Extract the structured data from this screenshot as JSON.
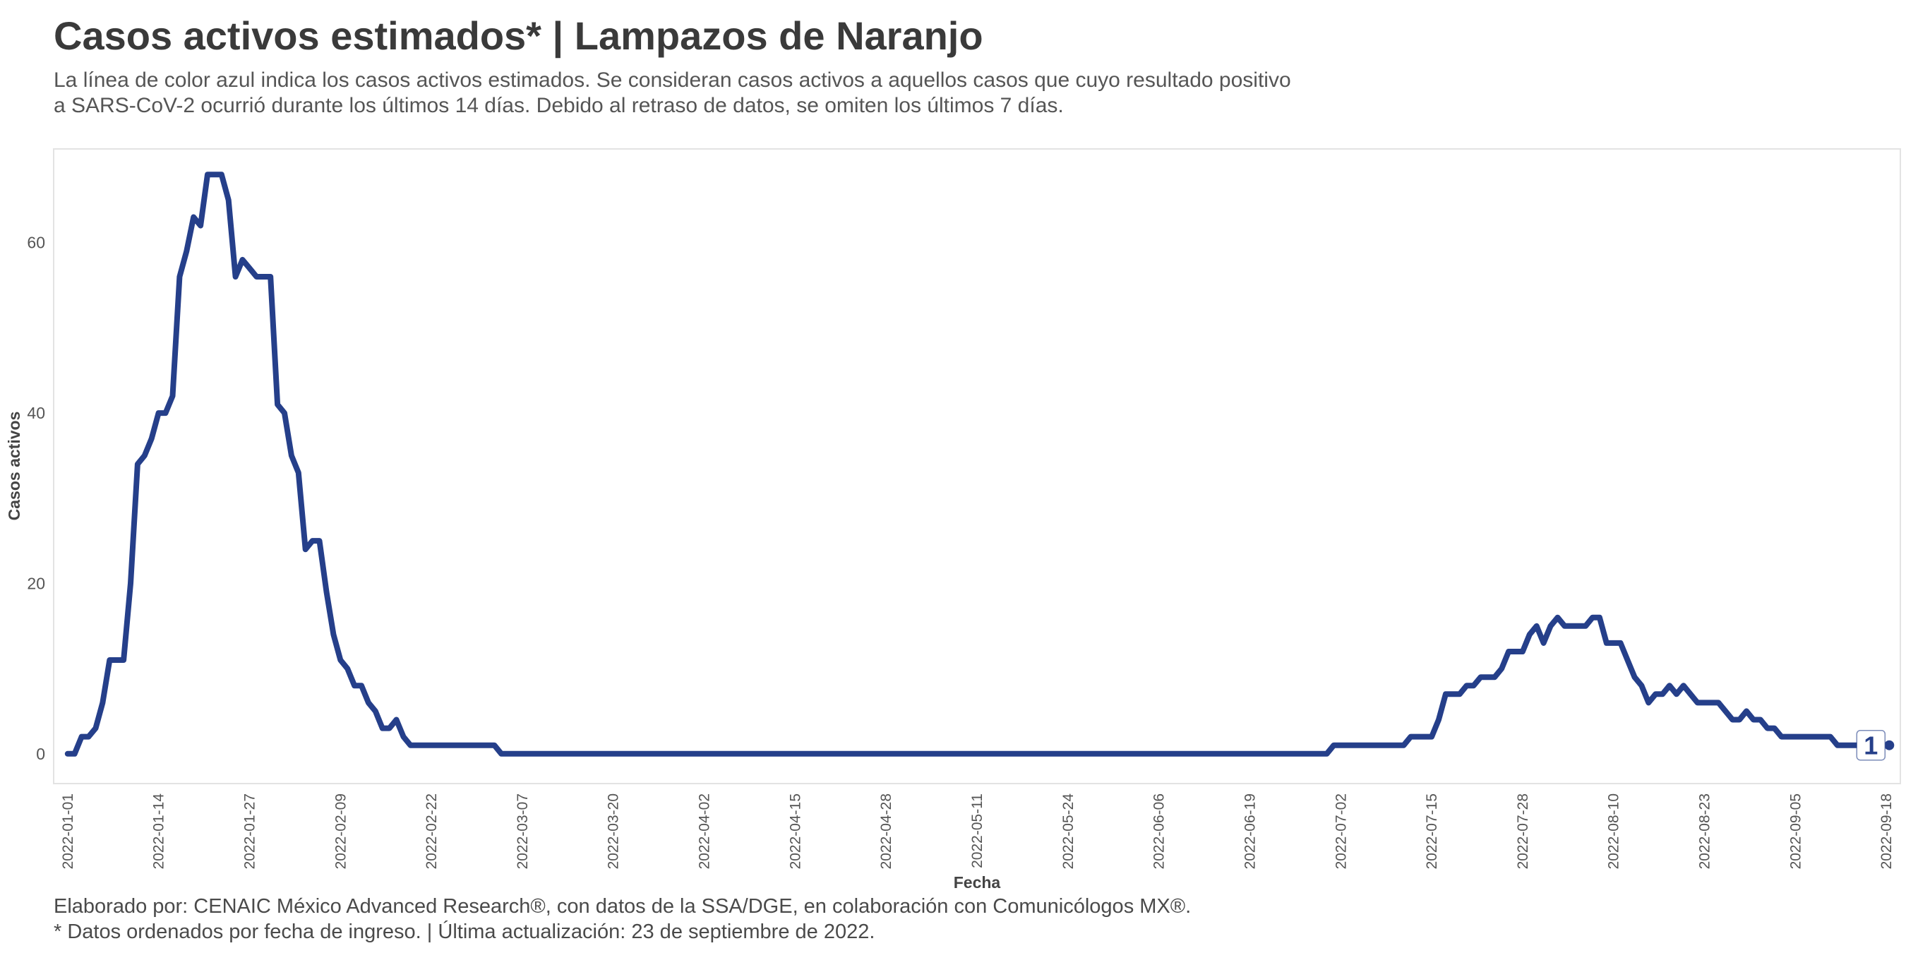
{
  "header": {
    "title": "Casos activos estimados* | Lampazos de Naranjo",
    "subtitle_line1": "La línea de color azul indica los casos activos estimados. Se consideran casos activos a aquellos casos que cuyo resultado positivo",
    "subtitle_line2": "a SARS-CoV-2 ocurrió durante los últimos 14 días. Debido al retraso de datos, se omiten los últimos 7 días."
  },
  "footer": {
    "caption_line1": "Elaborado por: CENAIC México Advanced Research®, con datos de la SSA/DGE, en colaboración con Comunicólogos MX®.",
    "caption_line2": "* Datos ordenados por fecha de ingreso. | Última actualización: 23 de septiembre de 2022."
  },
  "colors": {
    "line": "#253f8a",
    "panel_border": "#e3e3e3",
    "text": "#3a3a3a"
  },
  "chart_data": {
    "type": "line",
    "title": "Casos activos estimados* | Lampazos de Naranjo",
    "xlabel": "Fecha",
    "ylabel": "Casos activos",
    "x_start": "2022-01-01",
    "x_end": "2022-09-16",
    "xlim_days": [
      -2,
      262
    ],
    "ylim": [
      -3.5,
      71
    ],
    "y_ticks": [
      0,
      20,
      40,
      60
    ],
    "x_ticks": [
      "2022-01-01",
      "2022-01-14",
      "2022-01-27",
      "2022-02-09",
      "2022-02-22",
      "2022-03-07",
      "2022-03-20",
      "2022-04-02",
      "2022-04-15",
      "2022-04-28",
      "2022-05-11",
      "2022-05-24",
      "2022-06-06",
      "2022-06-19",
      "2022-07-02",
      "2022-07-15",
      "2022-07-28",
      "2022-08-10",
      "2022-08-23",
      "2022-09-05",
      "2022-09-18"
    ],
    "x_tick_days": [
      0,
      13,
      26,
      39,
      52,
      65,
      78,
      91,
      104,
      117,
      130,
      143,
      156,
      169,
      182,
      195,
      208,
      221,
      234,
      247,
      260
    ],
    "last_value_label": "1",
    "series": [
      {
        "name": "Casos activos",
        "points": [
          [
            0,
            0
          ],
          [
            1,
            0
          ],
          [
            2,
            2
          ],
          [
            3,
            2
          ],
          [
            4,
            3
          ],
          [
            5,
            6
          ],
          [
            6,
            11
          ],
          [
            7,
            11
          ],
          [
            8,
            11
          ],
          [
            9,
            20
          ],
          [
            10,
            34
          ],
          [
            11,
            35
          ],
          [
            12,
            37
          ],
          [
            13,
            40
          ],
          [
            14,
            40
          ],
          [
            15,
            42
          ],
          [
            16,
            56
          ],
          [
            17,
            59
          ],
          [
            18,
            63
          ],
          [
            19,
            62
          ],
          [
            20,
            68
          ],
          [
            21,
            68
          ],
          [
            22,
            68
          ],
          [
            23,
            65
          ],
          [
            24,
            56
          ],
          [
            25,
            58
          ],
          [
            26,
            57
          ],
          [
            27,
            56
          ],
          [
            28,
            56
          ],
          [
            29,
            56
          ],
          [
            30,
            41
          ],
          [
            31,
            40
          ],
          [
            32,
            35
          ],
          [
            33,
            33
          ],
          [
            34,
            24
          ],
          [
            35,
            25
          ],
          [
            36,
            25
          ],
          [
            37,
            19
          ],
          [
            38,
            14
          ],
          [
            39,
            11
          ],
          [
            40,
            10
          ],
          [
            41,
            8
          ],
          [
            42,
            8
          ],
          [
            43,
            6
          ],
          [
            44,
            5
          ],
          [
            45,
            3
          ],
          [
            46,
            3
          ],
          [
            47,
            4
          ],
          [
            48,
            2
          ],
          [
            49,
            1
          ],
          [
            50,
            1
          ],
          [
            60,
            1
          ],
          [
            61,
            1
          ],
          [
            62,
            0
          ],
          [
            63,
            0
          ],
          [
            70,
            0
          ],
          [
            100,
            0
          ],
          [
            150,
            0
          ],
          [
            179,
            0
          ],
          [
            180,
            0
          ],
          [
            181,
            1
          ],
          [
            182,
            1
          ],
          [
            191,
            1
          ],
          [
            192,
            2
          ],
          [
            193,
            2
          ],
          [
            195,
            2
          ],
          [
            196,
            4
          ],
          [
            197,
            7
          ],
          [
            198,
            7
          ],
          [
            199,
            7
          ],
          [
            200,
            8
          ],
          [
            201,
            8
          ],
          [
            202,
            9
          ],
          [
            203,
            9
          ],
          [
            204,
            9
          ],
          [
            205,
            10
          ],
          [
            206,
            12
          ],
          [
            207,
            12
          ],
          [
            208,
            12
          ],
          [
            209,
            14
          ],
          [
            210,
            15
          ],
          [
            211,
            13
          ],
          [
            212,
            15
          ],
          [
            213,
            16
          ],
          [
            214,
            15
          ],
          [
            215,
            15
          ],
          [
            216,
            15
          ],
          [
            217,
            15
          ],
          [
            218,
            16
          ],
          [
            219,
            16
          ],
          [
            220,
            13
          ],
          [
            221,
            13
          ],
          [
            222,
            13
          ],
          [
            223,
            11
          ],
          [
            224,
            9
          ],
          [
            225,
            8
          ],
          [
            226,
            6
          ],
          [
            227,
            7
          ],
          [
            228,
            7
          ],
          [
            229,
            8
          ],
          [
            230,
            7
          ],
          [
            231,
            8
          ],
          [
            232,
            7
          ],
          [
            233,
            6
          ],
          [
            234,
            6
          ],
          [
            235,
            6
          ],
          [
            236,
            6
          ],
          [
            237,
            5
          ],
          [
            238,
            4
          ],
          [
            239,
            4
          ],
          [
            240,
            5
          ],
          [
            241,
            4
          ],
          [
            242,
            4
          ],
          [
            243,
            3
          ],
          [
            244,
            3
          ],
          [
            245,
            2
          ],
          [
            246,
            2
          ],
          [
            247,
            2
          ],
          [
            248,
            2
          ],
          [
            249,
            2
          ],
          [
            250,
            2
          ],
          [
            251,
            2
          ],
          [
            252,
            2
          ],
          [
            253,
            1
          ],
          [
            254,
            1
          ],
          [
            255,
            1
          ],
          [
            256,
            1
          ],
          [
            257,
            1
          ],
          [
            258,
            1
          ],
          [
            259,
            1
          ]
        ]
      }
    ]
  }
}
